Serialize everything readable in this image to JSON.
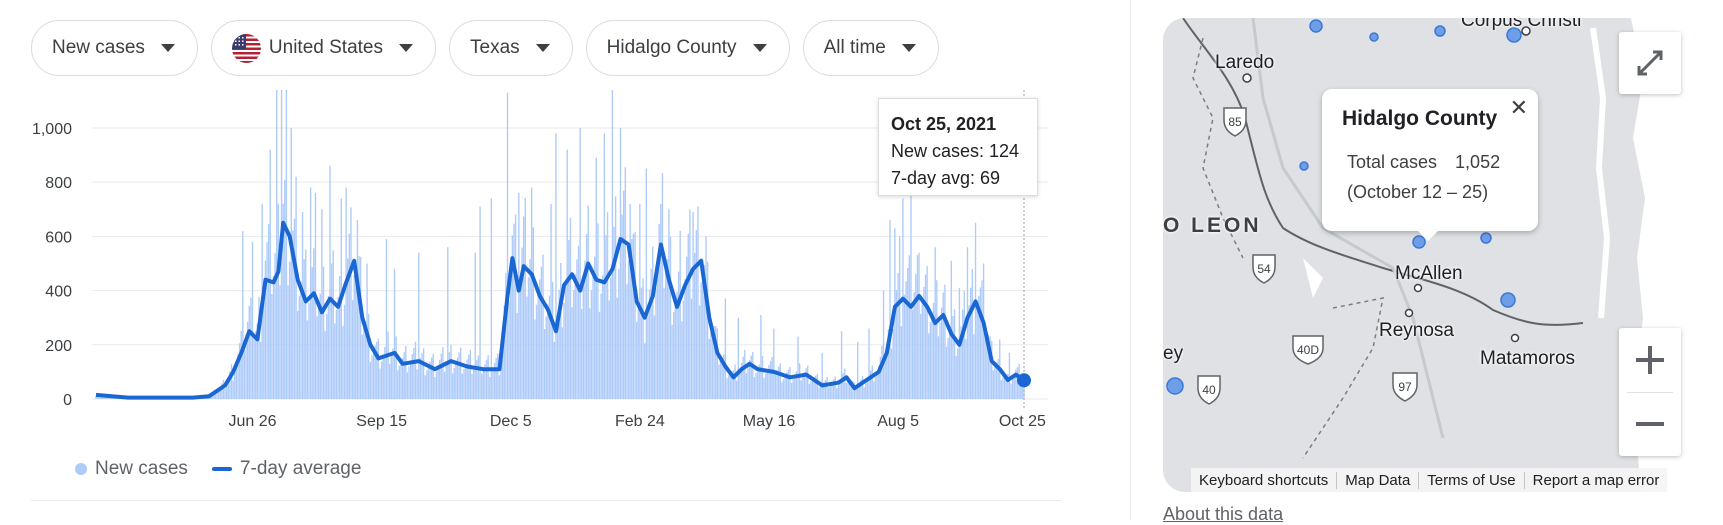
{
  "filters": {
    "metric": "New cases",
    "country": "United States",
    "state": "Texas",
    "county": "Hidalgo County",
    "range": "All time"
  },
  "colors": {
    "bars": "#aecbfa",
    "line": "#1a66d3",
    "grid": "#e8eaed"
  },
  "chart_data": {
    "type": "bar",
    "y_ticks": [
      "0",
      "200",
      "400",
      "600",
      "800",
      "1,000"
    ],
    "ylim": [
      0,
      1140
    ],
    "x_ticks": [
      "Jun 26",
      "Sep 15",
      "Dec 5",
      "Feb 24",
      "May 16",
      "Aug 5",
      "Oct 25"
    ],
    "x_tick_positions": [
      97,
      177,
      257,
      337,
      417,
      497,
      574
    ],
    "days": 575,
    "avg_anchors": [
      [
        0,
        15
      ],
      [
        20,
        5
      ],
      [
        60,
        5
      ],
      [
        70,
        10
      ],
      [
        80,
        50
      ],
      [
        85,
        100
      ],
      [
        90,
        170
      ],
      [
        95,
        250
      ],
      [
        100,
        220
      ],
      [
        105,
        440
      ],
      [
        110,
        430
      ],
      [
        113,
        470
      ],
      [
        116,
        650
      ],
      [
        120,
        600
      ],
      [
        125,
        440
      ],
      [
        130,
        360
      ],
      [
        135,
        390
      ],
      [
        140,
        320
      ],
      [
        145,
        370
      ],
      [
        150,
        340
      ],
      [
        155,
        430
      ],
      [
        160,
        510
      ],
      [
        165,
        300
      ],
      [
        170,
        200
      ],
      [
        175,
        150
      ],
      [
        180,
        160
      ],
      [
        185,
        170
      ],
      [
        190,
        130
      ],
      [
        200,
        140
      ],
      [
        210,
        110
      ],
      [
        220,
        140
      ],
      [
        230,
        120
      ],
      [
        240,
        110
      ],
      [
        250,
        110
      ],
      [
        255,
        380
      ],
      [
        258,
        520
      ],
      [
        262,
        400
      ],
      [
        265,
        490
      ],
      [
        270,
        460
      ],
      [
        275,
        380
      ],
      [
        280,
        330
      ],
      [
        285,
        250
      ],
      [
        290,
        420
      ],
      [
        295,
        460
      ],
      [
        300,
        400
      ],
      [
        305,
        500
      ],
      [
        310,
        440
      ],
      [
        315,
        430
      ],
      [
        320,
        480
      ],
      [
        325,
        590
      ],
      [
        330,
        570
      ],
      [
        335,
        360
      ],
      [
        340,
        300
      ],
      [
        345,
        380
      ],
      [
        350,
        570
      ],
      [
        355,
        440
      ],
      [
        360,
        340
      ],
      [
        365,
        420
      ],
      [
        370,
        480
      ],
      [
        375,
        510
      ],
      [
        380,
        300
      ],
      [
        385,
        170
      ],
      [
        390,
        120
      ],
      [
        395,
        80
      ],
      [
        400,
        110
      ],
      [
        405,
        130
      ],
      [
        410,
        110
      ],
      [
        420,
        100
      ],
      [
        430,
        80
      ],
      [
        440,
        90
      ],
      [
        450,
        50
      ],
      [
        460,
        60
      ],
      [
        465,
        80
      ],
      [
        470,
        40
      ],
      [
        475,
        60
      ],
      [
        480,
        80
      ],
      [
        485,
        100
      ],
      [
        490,
        170
      ],
      [
        495,
        340
      ],
      [
        500,
        370
      ],
      [
        505,
        340
      ],
      [
        510,
        380
      ],
      [
        515,
        340
      ],
      [
        520,
        280
      ],
      [
        525,
        310
      ],
      [
        530,
        240
      ],
      [
        535,
        200
      ],
      [
        540,
        300
      ],
      [
        545,
        360
      ],
      [
        550,
        280
      ],
      [
        555,
        140
      ],
      [
        560,
        110
      ],
      [
        565,
        70
      ],
      [
        570,
        90
      ],
      [
        575,
        69
      ]
    ],
    "spikes": [
      [
        91,
        620
      ],
      [
        97,
        580
      ],
      [
        103,
        720
      ],
      [
        108,
        920
      ],
      [
        112,
        1140
      ],
      [
        115,
        1140
      ],
      [
        118,
        1140
      ],
      [
        121,
        1000
      ],
      [
        124,
        820
      ],
      [
        128,
        690
      ],
      [
        133,
        780
      ],
      [
        136,
        760
      ],
      [
        140,
        700
      ],
      [
        145,
        860
      ],
      [
        152,
        740
      ],
      [
        155,
        780
      ],
      [
        162,
        660
      ],
      [
        168,
        500
      ],
      [
        180,
        590
      ],
      [
        185,
        480
      ],
      [
        200,
        540
      ],
      [
        218,
        560
      ],
      [
        235,
        540
      ],
      [
        238,
        710
      ],
      [
        245,
        740
      ],
      [
        255,
        1130
      ],
      [
        262,
        760
      ],
      [
        270,
        780
      ],
      [
        282,
        720
      ],
      [
        285,
        980
      ],
      [
        292,
        920
      ],
      [
        300,
        1000
      ],
      [
        310,
        890
      ],
      [
        315,
        980
      ],
      [
        320,
        1140
      ],
      [
        325,
        1000
      ],
      [
        331,
        720
      ],
      [
        337,
        720
      ],
      [
        341,
        850
      ],
      [
        350,
        720
      ],
      [
        355,
        700
      ],
      [
        362,
        620
      ],
      [
        370,
        690
      ],
      [
        378,
        600
      ],
      [
        390,
        370
      ],
      [
        398,
        300
      ],
      [
        412,
        310
      ],
      [
        420,
        260
      ],
      [
        435,
        230
      ],
      [
        450,
        170
      ],
      [
        462,
        250
      ],
      [
        472,
        210
      ],
      [
        479,
        260
      ],
      [
        488,
        400
      ],
      [
        492,
        660
      ],
      [
        495,
        630
      ],
      [
        498,
        600
      ],
      [
        500,
        740
      ],
      [
        505,
        780
      ],
      [
        510,
        540
      ],
      [
        515,
        490
      ],
      [
        520,
        560
      ],
      [
        530,
        510
      ],
      [
        535,
        410
      ],
      [
        540,
        560
      ],
      [
        545,
        650
      ],
      [
        550,
        500
      ],
      [
        560,
        220
      ],
      [
        566,
        170
      ],
      [
        572,
        130
      ]
    ],
    "series": [
      {
        "name": "New cases",
        "kind": "bar"
      },
      {
        "name": "7-day average",
        "kind": "line"
      }
    ],
    "tooltip": {
      "date": "Oct 25, 2021",
      "new_cases": "New cases: 124",
      "avg": "7-day avg: 69"
    }
  },
  "legend": {
    "bars": "New cases",
    "line": "7-day average"
  },
  "map": {
    "labels": {
      "laredo": "Laredo",
      "corpus": "Corpus Christi",
      "leon": "O LEON",
      "mcallen": "McAllen",
      "reynosa": "Reynosa",
      "matamoros": "Matamoros",
      "ey": "ey"
    },
    "shields": {
      "s85": "85",
      "s54": "54",
      "s40d": "40D",
      "s40": "40",
      "s97": "97"
    },
    "popup": {
      "title": "Hidalgo County",
      "label": "Total cases",
      "value": "1,052",
      "period": "(October 12 – 25)"
    },
    "attribution": [
      "Keyboard shortcuts",
      "Map Data",
      "Terms of Use",
      "Report a map error"
    ]
  },
  "about": "About this data"
}
